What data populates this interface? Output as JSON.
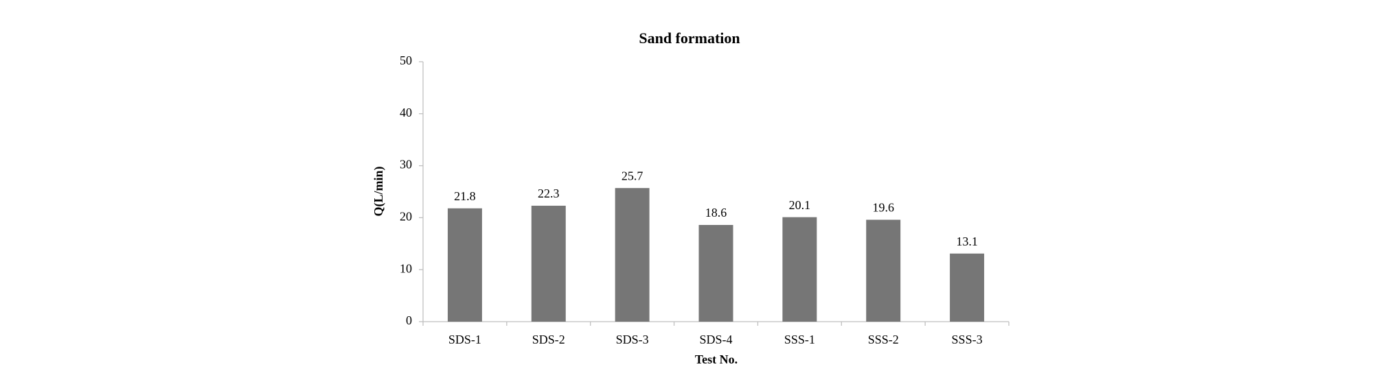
{
  "chart_data": {
    "type": "bar",
    "title": "Sand formation",
    "x_label": "Test No.",
    "y_label": "Q(L/min)",
    "categories": [
      "SDS-1",
      "SDS-2",
      "SDS-3",
      "SDS-4",
      "SSS-1",
      "SSS-2",
      "SSS-3"
    ],
    "values": [
      21.8,
      22.3,
      25.7,
      18.6,
      20.1,
      19.6,
      13.1
    ],
    "color": "#767676",
    "ylim": [
      0,
      50
    ],
    "yticks": [
      0,
      10,
      20,
      30,
      40,
      50
    ],
    "grid": false
  }
}
